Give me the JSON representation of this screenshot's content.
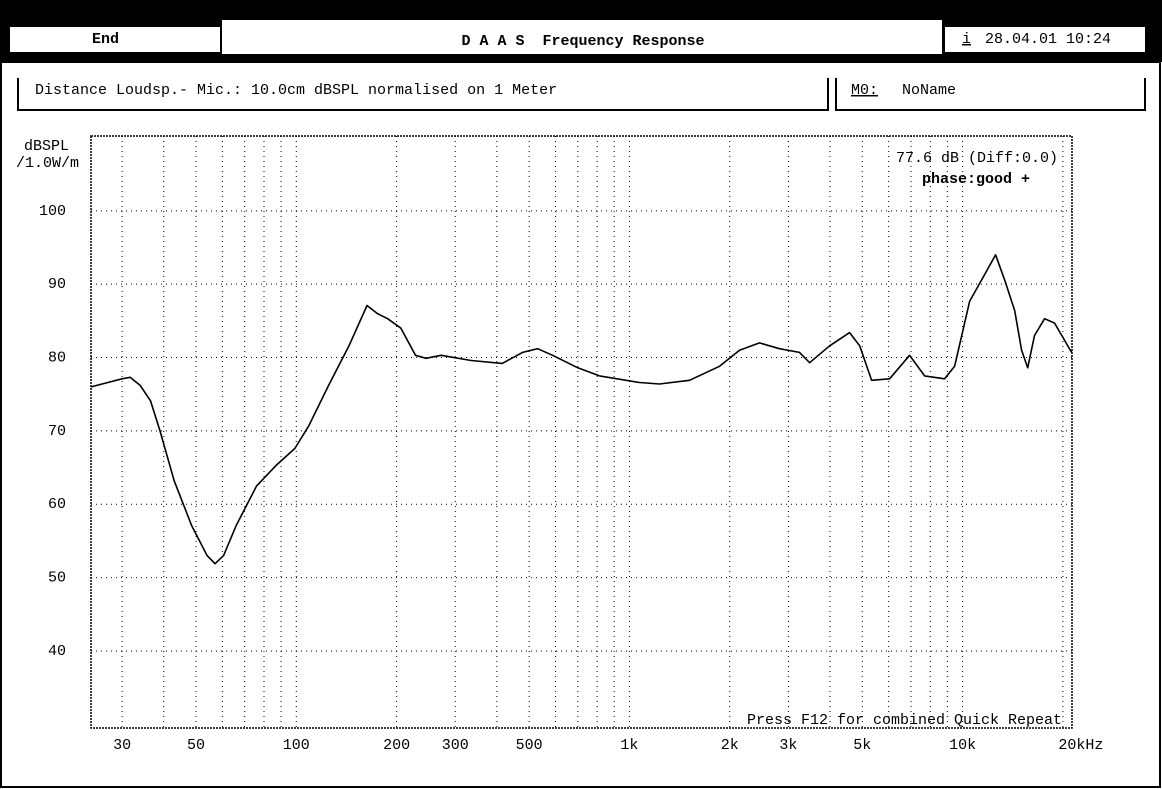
{
  "header": {
    "end": "End",
    "title": "D A A S  Frequency Response",
    "info_icon": "i",
    "datetime": "28.04.01 10:24"
  },
  "info": {
    "measurement": "Distance Loudsp.- Mic.: 10.0cm dBSPL normalised on 1 Meter",
    "memory": "M0:",
    "name": "NoName"
  },
  "chart_data": {
    "type": "line",
    "y_label": [
      "dBSPL",
      "/1.0W/m"
    ],
    "annotations": [
      "77.6 dB (Diff:0.0)",
      "phase:good +",
      "Press F12 for combined Quick Repeat"
    ],
    "log_x": true,
    "grid": true,
    "xlim": [
      24.2,
      21300
    ],
    "ylim": [
      29.5,
      110.2
    ],
    "xticks": [
      30,
      50,
      100,
      200,
      300,
      500,
      {
        "value": 1000,
        "label": "1k"
      },
      {
        "value": 2000,
        "label": "2k"
      },
      {
        "value": 3000,
        "label": "3k"
      },
      {
        "value": 5000,
        "label": "5k"
      },
      {
        "value": 10000,
        "label": "10k"
      },
      {
        "value": 20000,
        "label": "20kHz"
      }
    ],
    "xgrid": [
      30,
      40,
      50,
      60,
      70,
      80,
      90,
      100,
      200,
      300,
      400,
      500,
      600,
      700,
      800,
      900,
      1000,
      2000,
      3000,
      4000,
      5000,
      6000,
      7000,
      8000,
      9000,
      10000,
      20000
    ],
    "yticks": [
      40,
      50,
      60,
      70,
      80,
      90,
      100
    ],
    "series": [
      {
        "name": "Frequency Response",
        "color": "#000000",
        "x": [
          24.2,
          30,
          31.7,
          34,
          36.5,
          39,
          43,
          48.5,
          54,
          57,
          60.5,
          66,
          76,
          87,
          99,
          109,
          125,
          144,
          163,
          175,
          188,
          206,
          228,
          245,
          272,
          335,
          415,
          478,
          530,
          588,
          700,
          813,
          1072,
          1230,
          1514,
          1864,
          2140,
          2457,
          2820,
          3240,
          3473,
          3990,
          4580,
          4909,
          5333,
          6040,
          6935,
          7690,
          8830,
          9460,
          10500,
          11640,
          12560,
          13370,
          14330,
          15040,
          15680,
          16440,
          17620,
          18880,
          21240
        ],
        "values": [
          76.0,
          77.1,
          77.3,
          76.2,
          74.1,
          70.0,
          63.2,
          57.1,
          53.0,
          51.9,
          53.0,
          57.1,
          62.5,
          65.3,
          67.6,
          70.7,
          76.2,
          81.6,
          87.1,
          86.0,
          85.3,
          84.0,
          80.3,
          79.9,
          80.3,
          79.6,
          79.2,
          80.7,
          81.2,
          80.3,
          78.6,
          77.5,
          76.6,
          76.4,
          76.9,
          78.8,
          81.0,
          82.0,
          81.2,
          80.7,
          79.3,
          81.6,
          83.4,
          81.6,
          76.9,
          77.1,
          80.3,
          77.5,
          77.1,
          78.8,
          87.7,
          91.3,
          94.0,
          90.6,
          86.4,
          81.0,
          78.6,
          83.0,
          85.3,
          84.7,
          80.7
        ]
      }
    ]
  }
}
